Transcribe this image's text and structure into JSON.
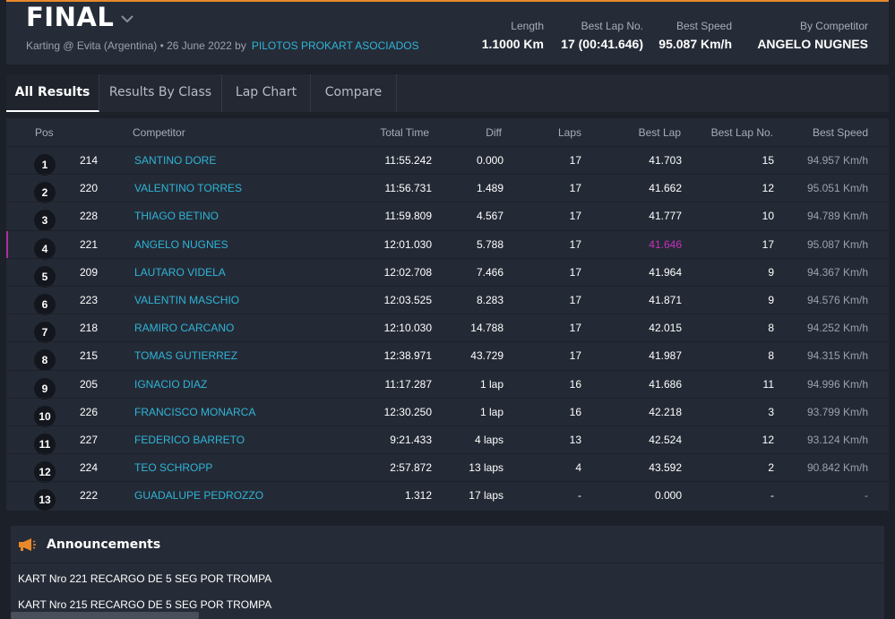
{
  "event": {
    "title": "FINAL",
    "subtitle": "Karting @ Evita (Argentina) • 26 June 2022 by",
    "organizer": "PILOTOS PROKART ASOCIADOS"
  },
  "stats": [
    {
      "label": "Length",
      "value": "1.1000 Km"
    },
    {
      "label": "Best Lap No.",
      "value": "17 (00:41.646)"
    },
    {
      "label": "Best Speed",
      "value": "95.087 Km/h"
    },
    {
      "label": "By Competitor",
      "value": "ANGELO NUGNES"
    }
  ],
  "tabs": [
    "All Results",
    "Results By Class",
    "Lap Chart",
    "Compare"
  ],
  "columns": {
    "pos": "Pos",
    "competitor": "Competitor",
    "total_time": "Total Time",
    "diff": "Diff",
    "laps": "Laps",
    "best_lap": "Best Lap",
    "best_lap_no": "Best Lap No.",
    "best_speed": "Best Speed"
  },
  "rows": [
    {
      "pos": "1",
      "no": "214",
      "name": "SANTINO DORE",
      "time": "11:55.242",
      "diff": "0.000",
      "laps": "17",
      "best": "41.703",
      "bestno": "15",
      "speed": "94.957 Km/h"
    },
    {
      "pos": "2",
      "no": "220",
      "name": "VALENTINO TORRES",
      "time": "11:56.731",
      "diff": "1.489",
      "laps": "17",
      "best": "41.662",
      "bestno": "12",
      "speed": "95.051 Km/h"
    },
    {
      "pos": "3",
      "no": "228",
      "name": "THIAGO BETINO",
      "time": "11:59.809",
      "diff": "4.567",
      "laps": "17",
      "best": "41.777",
      "bestno": "10",
      "speed": "94.789 Km/h"
    },
    {
      "pos": "4",
      "no": "221",
      "name": "ANGELO NUGNES",
      "time": "12:01.030",
      "diff": "5.788",
      "laps": "17",
      "best": "41.646",
      "bestno": "17",
      "speed": "95.087 Km/h"
    },
    {
      "pos": "5",
      "no": "209",
      "name": "LAUTARO VIDELA",
      "time": "12:02.708",
      "diff": "7.466",
      "laps": "17",
      "best": "41.964",
      "bestno": "9",
      "speed": "94.367 Km/h"
    },
    {
      "pos": "6",
      "no": "223",
      "name": "VALENTIN MASCHIO",
      "time": "12:03.525",
      "diff": "8.283",
      "laps": "17",
      "best": "41.871",
      "bestno": "9",
      "speed": "94.576 Km/h"
    },
    {
      "pos": "7",
      "no": "218",
      "name": "RAMIRO CARCANO",
      "time": "12:10.030",
      "diff": "14.788",
      "laps": "17",
      "best": "42.015",
      "bestno": "8",
      "speed": "94.252 Km/h"
    },
    {
      "pos": "8",
      "no": "215",
      "name": "TOMAS GUTIERREZ",
      "time": "12:38.971",
      "diff": "43.729",
      "laps": "17",
      "best": "41.987",
      "bestno": "8",
      "speed": "94.315 Km/h"
    },
    {
      "pos": "9",
      "no": "205",
      "name": "IGNACIO DIAZ",
      "time": "11:17.287",
      "diff": "1 lap",
      "laps": "16",
      "best": "41.686",
      "bestno": "11",
      "speed": "94.996 Km/h"
    },
    {
      "pos": "10",
      "no": "226",
      "name": "FRANCISCO MONARCA",
      "time": "12:30.250",
      "diff": "1 lap",
      "laps": "16",
      "best": "42.218",
      "bestno": "3",
      "speed": "93.799 Km/h"
    },
    {
      "pos": "11",
      "no": "227",
      "name": "FEDERICO BARRETO",
      "time": "9:21.433",
      "diff": "4 laps",
      "laps": "13",
      "best": "42.524",
      "bestno": "12",
      "speed": "93.124 Km/h"
    },
    {
      "pos": "12",
      "no": "224",
      "name": "TEO SCHROPP",
      "time": "2:57.872",
      "diff": "13 laps",
      "laps": "4",
      "best": "43.592",
      "bestno": "2",
      "speed": "90.842 Km/h"
    },
    {
      "pos": "13",
      "no": "222",
      "name": "GUADALUPE PEDROZZO",
      "time": "1.312",
      "diff": "17 laps",
      "laps": "-",
      "best": "0.000",
      "bestno": "-",
      "speed": "-"
    }
  ],
  "announcements": {
    "title": "Announcements",
    "icon": "megaphone-icon",
    "items": [
      "KART Nro 221 RECARGO DE 5 SEG POR TROMPA",
      "KART Nro 215 RECARGO DE 5 SEG POR TROMPA"
    ]
  },
  "colors": {
    "accent": "#e8892a",
    "link": "#2fb4d8",
    "best_overall": "#c82fc0"
  }
}
